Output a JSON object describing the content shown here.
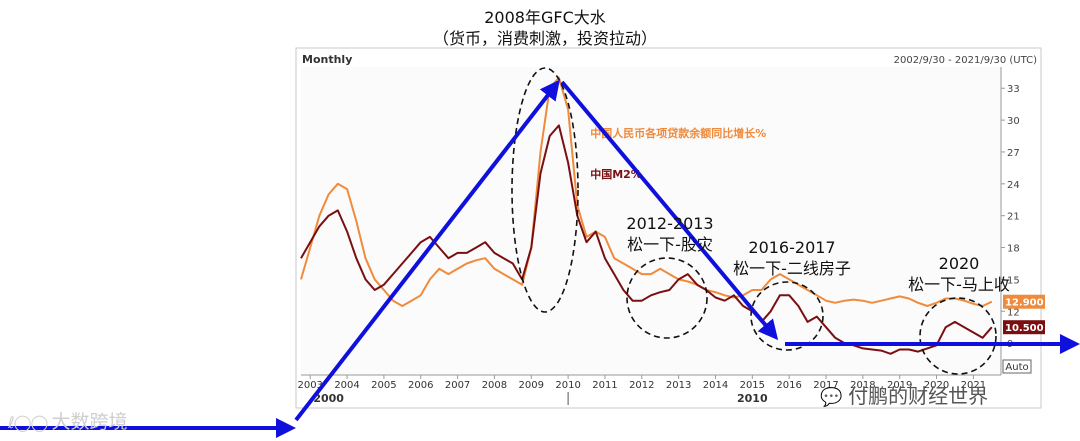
{
  "annotation_top": {
    "line1": "2008年GFC大水",
    "line2": "（货币，消费刺激，投资拉动）"
  },
  "annotations": {
    "a2012_year": "2012-2013",
    "a2012_text": "松一下-股灾",
    "a2016_year": "2016-2017",
    "a2016_text": "松一下-二线房子",
    "a2020_year": "2020",
    "a2020_text": "松一下-马上收"
  },
  "watermarks": {
    "left": "大数跨境",
    "right": "付鹏的财经世界"
  },
  "colors": {
    "loan_series": "#f08a3c",
    "m2_series": "#7a0f12",
    "arrow": "#1010dd",
    "axis_text": "#333333"
  },
  "chart_data": {
    "type": "line",
    "frequency_label": "Monthly",
    "date_range_label": "2002/9/30 - 2021/9/30 (UTC)",
    "x_tick_labels": [
      "2003",
      "2004",
      "2005",
      "2006",
      "2007",
      "2008",
      "2009",
      "2010",
      "2011",
      "2012",
      "2013",
      "2014",
      "2015",
      "2016",
      "2017",
      "2018",
      "2019",
      "2020",
      "2021"
    ],
    "x_major_labels": [
      "2000",
      "2010"
    ],
    "y_tick_labels": [
      "33",
      "30",
      "27",
      "24",
      "21",
      "18",
      "15",
      "12",
      "9"
    ],
    "ylim": [
      6,
      35
    ],
    "xlim": [
      2002.75,
      2021.75
    ],
    "auto_label": "Auto",
    "series": [
      {
        "name": "中国人民币各项贷款余额同比增长%",
        "last_value_label": "12.900",
        "points": [
          [
            2002.75,
            15.0
          ],
          [
            2003.0,
            18.0
          ],
          [
            2003.25,
            21.0
          ],
          [
            2003.5,
            23.0
          ],
          [
            2003.75,
            24.0
          ],
          [
            2004.0,
            23.5
          ],
          [
            2004.25,
            20.5
          ],
          [
            2004.5,
            17.0
          ],
          [
            2004.75,
            15.0
          ],
          [
            2005.0,
            14.0
          ],
          [
            2005.25,
            13.0
          ],
          [
            2005.5,
            12.5
          ],
          [
            2005.75,
            13.0
          ],
          [
            2006.0,
            13.5
          ],
          [
            2006.25,
            15.0
          ],
          [
            2006.5,
            16.0
          ],
          [
            2006.75,
            15.5
          ],
          [
            2007.0,
            16.0
          ],
          [
            2007.25,
            16.5
          ],
          [
            2007.5,
            16.8
          ],
          [
            2007.75,
            17.0
          ],
          [
            2008.0,
            16.0
          ],
          [
            2008.25,
            15.5
          ],
          [
            2008.5,
            15.0
          ],
          [
            2008.75,
            14.5
          ],
          [
            2009.0,
            18.0
          ],
          [
            2009.25,
            27.0
          ],
          [
            2009.5,
            33.0
          ],
          [
            2009.75,
            34.0
          ],
          [
            2010.0,
            31.0
          ],
          [
            2010.25,
            22.0
          ],
          [
            2010.5,
            19.0
          ],
          [
            2010.75,
            19.5
          ],
          [
            2011.0,
            19.0
          ],
          [
            2011.25,
            17.0
          ],
          [
            2011.5,
            16.5
          ],
          [
            2011.75,
            16.0
          ],
          [
            2012.0,
            15.5
          ],
          [
            2012.25,
            15.5
          ],
          [
            2012.5,
            16.0
          ],
          [
            2012.75,
            15.5
          ],
          [
            2013.0,
            15.0
          ],
          [
            2013.25,
            14.8
          ],
          [
            2013.5,
            14.5
          ],
          [
            2013.75,
            14.0
          ],
          [
            2014.0,
            13.8
          ],
          [
            2014.25,
            13.5
          ],
          [
            2014.5,
            13.3
          ],
          [
            2014.75,
            13.5
          ],
          [
            2015.0,
            14.0
          ],
          [
            2015.25,
            14.0
          ],
          [
            2015.5,
            15.0
          ],
          [
            2015.75,
            15.5
          ],
          [
            2016.0,
            15.0
          ],
          [
            2016.25,
            14.5
          ],
          [
            2016.5,
            14.0
          ],
          [
            2016.75,
            13.5
          ],
          [
            2017.0,
            13.0
          ],
          [
            2017.25,
            12.8
          ],
          [
            2017.5,
            13.0
          ],
          [
            2017.75,
            13.1
          ],
          [
            2018.0,
            13.0
          ],
          [
            2018.25,
            12.8
          ],
          [
            2018.5,
            13.0
          ],
          [
            2018.75,
            13.2
          ],
          [
            2019.0,
            13.4
          ],
          [
            2019.25,
            13.2
          ],
          [
            2019.5,
            12.8
          ],
          [
            2019.75,
            12.5
          ],
          [
            2020.0,
            12.8
          ],
          [
            2020.25,
            13.2
          ],
          [
            2020.5,
            13.2
          ],
          [
            2020.75,
            13.0
          ],
          [
            2021.0,
            12.7
          ],
          [
            2021.25,
            12.5
          ],
          [
            2021.5,
            12.9
          ]
        ]
      },
      {
        "name": "中国M2%",
        "last_value_label": "10.500",
        "points": [
          [
            2002.75,
            17.0
          ],
          [
            2003.0,
            18.5
          ],
          [
            2003.25,
            20.0
          ],
          [
            2003.5,
            21.0
          ],
          [
            2003.75,
            21.5
          ],
          [
            2004.0,
            19.5
          ],
          [
            2004.25,
            17.0
          ],
          [
            2004.5,
            15.0
          ],
          [
            2004.75,
            14.0
          ],
          [
            2005.0,
            14.5
          ],
          [
            2005.25,
            15.5
          ],
          [
            2005.5,
            16.5
          ],
          [
            2005.75,
            17.5
          ],
          [
            2006.0,
            18.5
          ],
          [
            2006.25,
            19.0
          ],
          [
            2006.5,
            18.0
          ],
          [
            2006.75,
            17.0
          ],
          [
            2007.0,
            17.5
          ],
          [
            2007.25,
            17.5
          ],
          [
            2007.5,
            18.0
          ],
          [
            2007.75,
            18.5
          ],
          [
            2008.0,
            17.5
          ],
          [
            2008.25,
            17.0
          ],
          [
            2008.5,
            16.5
          ],
          [
            2008.75,
            15.0
          ],
          [
            2009.0,
            18.0
          ],
          [
            2009.25,
            25.0
          ],
          [
            2009.5,
            28.5
          ],
          [
            2009.75,
            29.5
          ],
          [
            2010.0,
            26.0
          ],
          [
            2010.25,
            21.0
          ],
          [
            2010.5,
            18.5
          ],
          [
            2010.75,
            19.5
          ],
          [
            2011.0,
            17.0
          ],
          [
            2011.25,
            15.5
          ],
          [
            2011.5,
            14.0
          ],
          [
            2011.75,
            13.0
          ],
          [
            2012.0,
            13.0
          ],
          [
            2012.25,
            13.5
          ],
          [
            2012.5,
            13.8
          ],
          [
            2012.75,
            14.0
          ],
          [
            2013.0,
            15.0
          ],
          [
            2013.25,
            15.5
          ],
          [
            2013.5,
            14.5
          ],
          [
            2013.75,
            14.0
          ],
          [
            2014.0,
            13.3
          ],
          [
            2014.25,
            13.0
          ],
          [
            2014.5,
            13.5
          ],
          [
            2014.75,
            12.5
          ],
          [
            2015.0,
            12.0
          ],
          [
            2015.25,
            11.0
          ],
          [
            2015.5,
            12.0
          ],
          [
            2015.75,
            13.5
          ],
          [
            2016.0,
            13.5
          ],
          [
            2016.25,
            12.5
          ],
          [
            2016.5,
            11.0
          ],
          [
            2016.75,
            11.5
          ],
          [
            2017.0,
            10.5
          ],
          [
            2017.25,
            9.5
          ],
          [
            2017.5,
            9.0
          ],
          [
            2017.75,
            8.8
          ],
          [
            2018.0,
            8.5
          ],
          [
            2018.25,
            8.4
          ],
          [
            2018.5,
            8.3
          ],
          [
            2018.75,
            8.0
          ],
          [
            2019.0,
            8.4
          ],
          [
            2019.25,
            8.4
          ],
          [
            2019.5,
            8.2
          ],
          [
            2019.75,
            8.5
          ],
          [
            2020.0,
            8.8
          ],
          [
            2020.25,
            10.5
          ],
          [
            2020.5,
            11.0
          ],
          [
            2020.75,
            10.5
          ],
          [
            2021.0,
            10.0
          ],
          [
            2021.25,
            9.5
          ],
          [
            2021.5,
            10.5
          ]
        ]
      }
    ],
    "legend": [
      {
        "label": "中国人民币各项贷款余额同比增长%",
        "color": "#f08a3c"
      },
      {
        "label": "中国M2%",
        "color": "#7a0f12"
      }
    ]
  }
}
